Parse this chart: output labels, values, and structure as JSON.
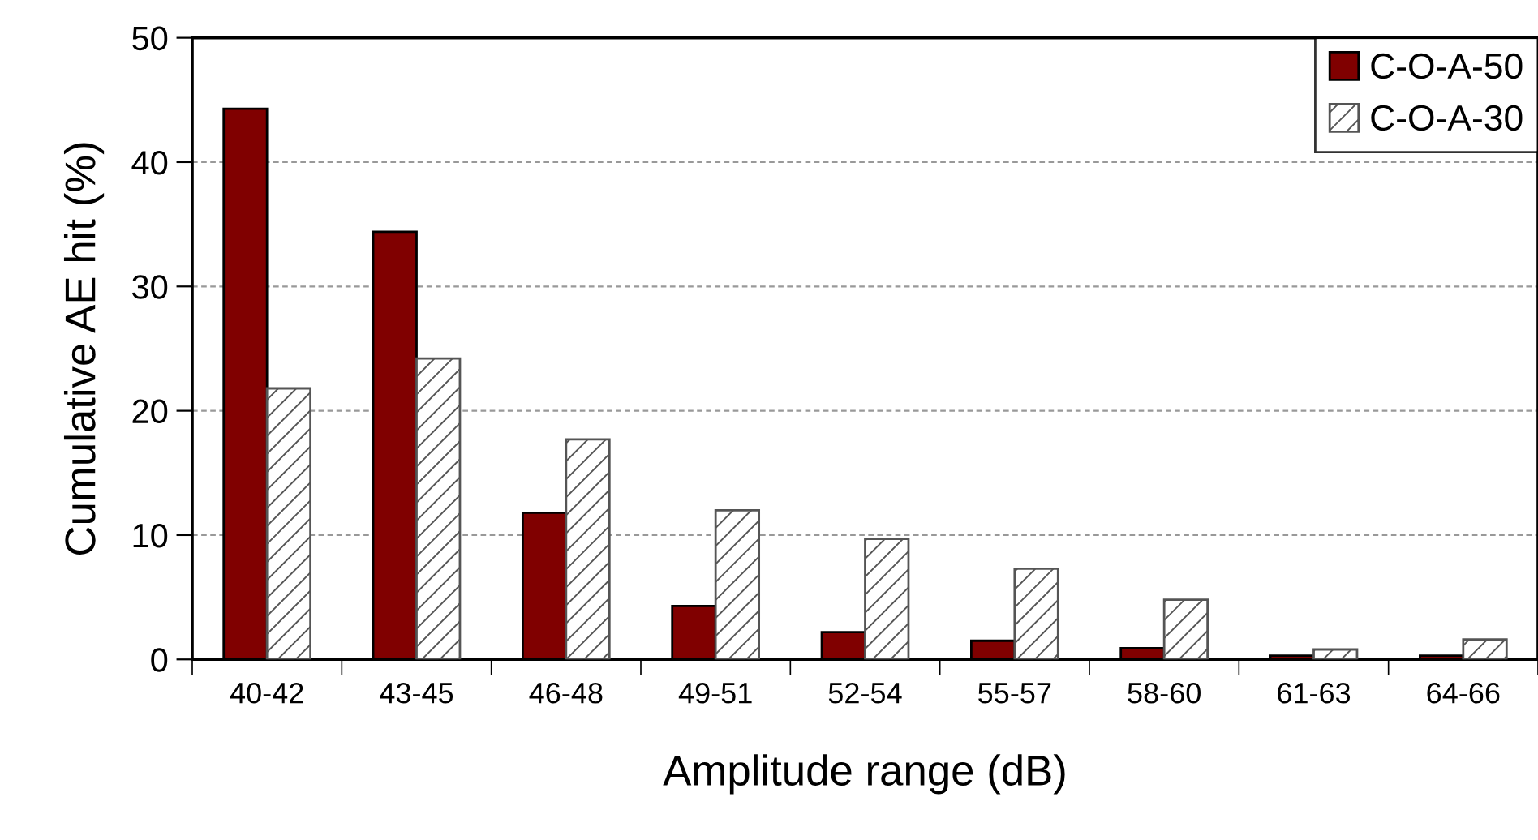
{
  "chart_data": {
    "type": "bar",
    "xlabel": "Amplitude range (dB)",
    "ylabel": "Cumulative AE hit (%)",
    "categories": [
      "40-42",
      "43-45",
      "46-48",
      "49-51",
      "52-54",
      "55-57",
      "58-60",
      "61-63",
      "64-66"
    ],
    "series": [
      {
        "name": "C-O-A-50",
        "color": "#800000",
        "values": [
          44.3,
          34.4,
          11.8,
          4.3,
          2.2,
          1.5,
          0.9,
          0.3,
          0.3
        ]
      },
      {
        "name": "C-O-A-30",
        "color": "#555555",
        "values": [
          21.8,
          24.2,
          17.7,
          12.0,
          9.7,
          7.3,
          4.8,
          0.8,
          1.6
        ]
      }
    ],
    "ylim": [
      0,
      50
    ],
    "yticks": [
      0,
      10,
      20,
      30,
      40,
      50
    ],
    "grid": "y",
    "legend": "top right"
  }
}
